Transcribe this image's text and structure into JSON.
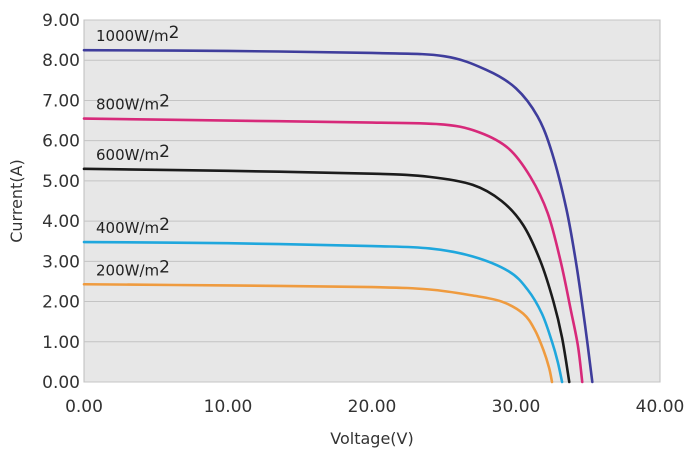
{
  "chart_data": {
    "type": "line",
    "xlabel": "Voltage(V)",
    "ylabel": "Current(A)",
    "xlim": [
      0,
      40
    ],
    "ylim": [
      0,
      9
    ],
    "grid": "horizontal",
    "x_ticks": [
      "0.00",
      "10.00",
      "20.00",
      "30.00",
      "40.00"
    ],
    "y_ticks": [
      "0.00",
      "1.00",
      "2.00",
      "3.00",
      "4.00",
      "5.00",
      "6.00",
      "7.00",
      "8.00",
      "9.00"
    ],
    "series": [
      {
        "name": "1000W/m2",
        "color": "#3f3d9c",
        "points": [
          [
            0,
            8.25
          ],
          [
            10,
            8.23
          ],
          [
            20,
            8.18
          ],
          [
            25,
            8.1
          ],
          [
            28,
            7.75
          ],
          [
            30,
            7.3
          ],
          [
            31.5,
            6.6
          ],
          [
            32.5,
            5.7
          ],
          [
            33.5,
            4.3
          ],
          [
            34.2,
            2.9
          ],
          [
            34.8,
            1.4
          ],
          [
            35.3,
            0
          ]
        ]
      },
      {
        "name": "800W/m2",
        "color": "#d7297a",
        "points": [
          [
            0,
            6.55
          ],
          [
            10,
            6.5
          ],
          [
            20,
            6.45
          ],
          [
            25,
            6.4
          ],
          [
            27.5,
            6.2
          ],
          [
            29.5,
            5.8
          ],
          [
            31,
            5.1
          ],
          [
            32.2,
            4.2
          ],
          [
            33.1,
            3.0
          ],
          [
            33.8,
            1.8
          ],
          [
            34.3,
            0.9
          ],
          [
            34.6,
            0
          ]
        ]
      },
      {
        "name": "600W/m2",
        "color": "#1b1b1b",
        "points": [
          [
            0,
            5.3
          ],
          [
            10,
            5.25
          ],
          [
            20,
            5.18
          ],
          [
            24,
            5.1
          ],
          [
            27,
            4.9
          ],
          [
            29,
            4.5
          ],
          [
            30.5,
            3.9
          ],
          [
            31.7,
            3.0
          ],
          [
            32.6,
            2.0
          ],
          [
            33.2,
            1.1
          ],
          [
            33.7,
            0
          ]
        ]
      },
      {
        "name": "400W/m2",
        "color": "#1fa7dd",
        "points": [
          [
            0,
            3.48
          ],
          [
            10,
            3.45
          ],
          [
            20,
            3.38
          ],
          [
            24,
            3.32
          ],
          [
            27,
            3.12
          ],
          [
            29.5,
            2.75
          ],
          [
            30.8,
            2.3
          ],
          [
            31.8,
            1.7
          ],
          [
            32.5,
            1.0
          ],
          [
            32.9,
            0.5
          ],
          [
            33.2,
            0
          ]
        ]
      },
      {
        "name": "200W/m2",
        "color": "#ef9b3f",
        "points": [
          [
            0,
            2.43
          ],
          [
            10,
            2.4
          ],
          [
            20,
            2.36
          ],
          [
            24,
            2.3
          ],
          [
            27,
            2.15
          ],
          [
            29,
            2.0
          ],
          [
            30.5,
            1.7
          ],
          [
            31.3,
            1.3
          ],
          [
            31.9,
            0.8
          ],
          [
            32.3,
            0.35
          ],
          [
            32.5,
            0
          ]
        ]
      }
    ]
  }
}
